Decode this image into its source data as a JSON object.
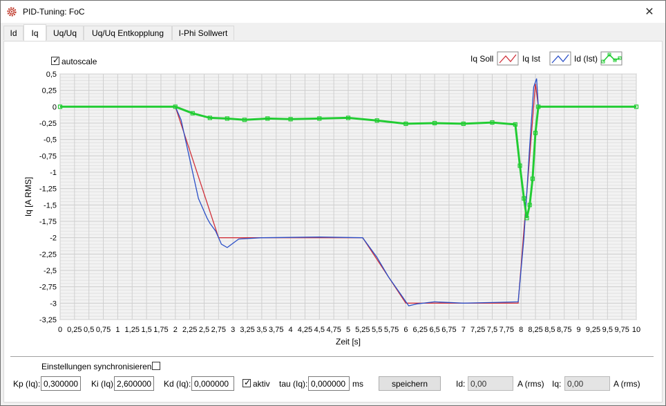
{
  "window": {
    "title": "PID-Tuning: FoC",
    "close_glyph": "✕"
  },
  "tabs": [
    {
      "label": "Id"
    },
    {
      "label": "Iq"
    },
    {
      "label": "Uq/Uq"
    },
    {
      "label": "Uq/Uq Entkopplung"
    },
    {
      "label": "I-Phi Sollwert"
    }
  ],
  "active_tab": "Iq",
  "autoscale": {
    "label": "autoscale",
    "checked": true
  },
  "legend": [
    {
      "name": "Iq Soll",
      "color": "#d0303a"
    },
    {
      "name": "Iq Ist",
      "color": "#2a4fc7"
    },
    {
      "name": "Id (Ist)",
      "color": "#22cc33"
    }
  ],
  "chart_data": {
    "type": "line",
    "xlabel": "Zeit [s]",
    "ylabel": "Iq [A RMS]",
    "xlim": [
      0,
      10
    ],
    "ylim": [
      -3.25,
      0.5
    ],
    "xticks": [
      "0",
      "0,25",
      "0,5",
      "0,75",
      "1",
      "1,25",
      "1,5",
      "1,75",
      "2",
      "2,25",
      "2,5",
      "2,75",
      "3",
      "3,25",
      "3,5",
      "3,75",
      "4",
      "4,25",
      "4,5",
      "4,75",
      "5",
      "5,25",
      "5,5",
      "5,75",
      "6",
      "6,25",
      "6,5",
      "6,75",
      "7",
      "7,25",
      "7,5",
      "7,75",
      "8",
      "8,25",
      "8,5",
      "8,75",
      "9",
      "9,25",
      "9,5",
      "9,75",
      "10"
    ],
    "yticks": [
      "0,5",
      "0,25",
      "0",
      "-0,25",
      "-0,5",
      "-0,75",
      "-1",
      "-1,25",
      "-1,5",
      "-1,75",
      "-2",
      "-2,25",
      "-2,5",
      "-2,75",
      "-3",
      "-3,25"
    ],
    "grid": true,
    "legend_position": "top-right",
    "series": [
      {
        "name": "Iq Soll",
        "x": [
          0,
          2.0,
          2.75,
          5.25,
          6.0,
          7.95,
          8.25,
          8.3,
          10
        ],
        "y": [
          0,
          0,
          -2.0,
          -2.0,
          -3.0,
          -3.0,
          0.35,
          0,
          0
        ]
      },
      {
        "name": "Iq Ist",
        "x": [
          0,
          2.0,
          2.1,
          2.4,
          2.5,
          2.55,
          2.6,
          2.7,
          2.8,
          2.9,
          3.1,
          3.5,
          4.5,
          5.25,
          5.5,
          5.7,
          5.9,
          6.05,
          6.2,
          6.5,
          7.0,
          7.5,
          7.95,
          8.05,
          8.15,
          8.22,
          8.27,
          8.3,
          10
        ],
        "y": [
          0,
          0,
          -0.2,
          -1.4,
          -1.6,
          -1.7,
          -1.78,
          -1.9,
          -2.1,
          -2.15,
          -2.02,
          -2.0,
          -1.99,
          -2.0,
          -2.3,
          -2.6,
          -2.85,
          -3.04,
          -3.01,
          -2.98,
          -3.0,
          -2.99,
          -2.98,
          -2.0,
          -0.6,
          0.3,
          0.43,
          0,
          0
        ]
      },
      {
        "name": "Id (Ist)",
        "x": [
          0,
          2.0,
          2.3,
          2.6,
          2.9,
          3.2,
          3.6,
          4.0,
          4.5,
          5.0,
          5.5,
          6.0,
          6.5,
          7.0,
          7.5,
          7.9,
          7.98,
          8.05,
          8.1,
          8.15,
          8.2,
          8.25,
          8.3,
          10
        ],
        "y": [
          0,
          0,
          -0.1,
          -0.17,
          -0.18,
          -0.2,
          -0.18,
          -0.19,
          -0.18,
          -0.17,
          -0.21,
          -0.26,
          -0.25,
          -0.26,
          -0.24,
          -0.27,
          -0.9,
          -1.4,
          -1.7,
          -1.5,
          -1.1,
          -0.4,
          0,
          0
        ]
      }
    ]
  },
  "sync": {
    "label": "Einstellungen synchronisieren",
    "checked": false
  },
  "params": {
    "kp_label": "Kp (Iq):",
    "kp_value": "0,300000",
    "ki_label": "Ki (Iq):",
    "ki_value": "2,600000",
    "kd_label": "Kd (Iq):",
    "kd_value": "0,000000",
    "aktiv_label": "aktiv",
    "aktiv_checked": true,
    "tau_label": "tau (Iq):",
    "tau_value": "0,000000",
    "tau_unit": "ms",
    "save_label": "speichern",
    "id_label": "Id:",
    "id_value": "0,00",
    "id_unit": "A (rms)",
    "iq_label": "Iq:",
    "iq_value": "0,00",
    "iq_unit": "A (rms)"
  }
}
